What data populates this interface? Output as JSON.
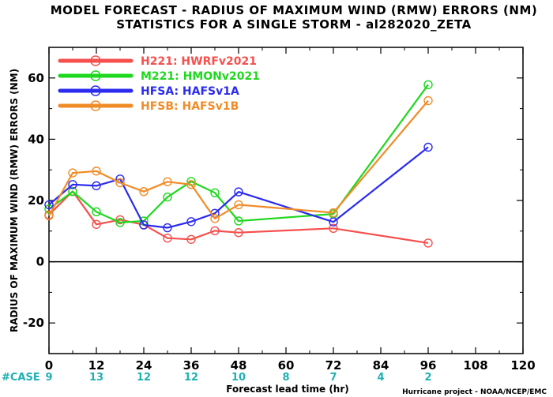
{
  "chart_data": {
    "type": "line",
    "title": "MODEL FORECAST - RADIUS OF MAXIMUM WIND (RMW) ERRORS (NM)",
    "subtitle": "STATISTICS FOR A SINGLE STORM - al282020_ZETA",
    "xlabel": "Forecast lead time (hr)",
    "ylabel": "RADIUS OF MAXIMUM WIND (RMW) ERRORS (NM)",
    "xlim": [
      0,
      120
    ],
    "ylim": [
      -30,
      70
    ],
    "x_ticks": [
      "0",
      "12",
      "24",
      "36",
      "48",
      "60",
      "72",
      "84",
      "96",
      "108",
      "120"
    ],
    "y_ticks": [
      "60",
      "40",
      "20",
      "0",
      "-20"
    ],
    "cases_label": "#CASE",
    "cases": [
      {
        "x": 0,
        "n": "9"
      },
      {
        "x": 12,
        "n": "13"
      },
      {
        "x": 24,
        "n": "12"
      },
      {
        "x": 36,
        "n": "12"
      },
      {
        "x": 48,
        "n": "10"
      },
      {
        "x": 60,
        "n": "8"
      },
      {
        "x": 72,
        "n": "7"
      },
      {
        "x": 84,
        "n": "4"
      },
      {
        "x": 96,
        "n": "2"
      }
    ],
    "credit": "Hurricane project - NOAA/NCEP/EMC",
    "legend_position": "top-left",
    "series": [
      {
        "id": "H221",
        "name": "H221:  HWRFv2021",
        "color": "#f5504d",
        "x": [
          0,
          6,
          12,
          18,
          24,
          30,
          36,
          42,
          48,
          72,
          96
        ],
        "y": [
          15.3,
          23.0,
          12.2,
          13.7,
          12.1,
          7.7,
          7.3,
          10.1,
          9.5,
          10.9,
          6.1
        ]
      },
      {
        "id": "M221",
        "name": "M221:  HMONv2021",
        "color": "#1ed81e",
        "x": [
          0,
          6,
          12,
          18,
          24,
          30,
          36,
          42,
          48,
          72,
          96
        ],
        "y": [
          17.2,
          22.9,
          16.3,
          12.8,
          13.3,
          21.1,
          26.2,
          22.5,
          13.3,
          15.6,
          57.8
        ]
      },
      {
        "id": "HFSA",
        "name": "HFSA:  HAFSv1A",
        "color": "#2b2bf0",
        "x": [
          0,
          6,
          12,
          18,
          24,
          30,
          36,
          42,
          48,
          72,
          96
        ],
        "y": [
          18.6,
          25.2,
          24.8,
          27.0,
          12.0,
          11.1,
          13.1,
          15.8,
          22.8,
          13.0,
          37.4
        ]
      },
      {
        "id": "HFSB",
        "name": "HFSB:  HAFSv1B",
        "color": "#f08c28",
        "x": [
          0,
          6,
          12,
          18,
          24,
          30,
          36,
          42,
          48,
          72,
          96
        ],
        "y": [
          15.0,
          29.0,
          29.6,
          25.8,
          22.9,
          26.1,
          25.2,
          14.1,
          18.6,
          16.0,
          52.6
        ]
      }
    ]
  }
}
